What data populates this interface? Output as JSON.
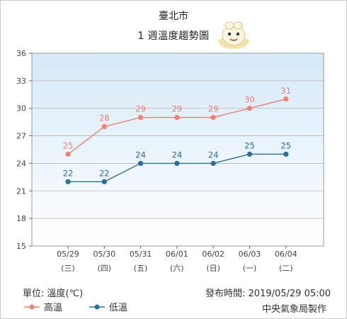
{
  "header": {
    "city": "臺北市",
    "subtitle": "1 週溫度趨勢圖"
  },
  "footer": {
    "unit": "單位: 溫度(℃)",
    "published": "發布時間: 2019/05/29 05:00",
    "credit": "中央氣象局製作"
  },
  "colors": {
    "high": "#f08070",
    "low": "#2a6e9a",
    "plot_bg_top": "#d6e9f8",
    "plot_bg_bottom": "#ffffff",
    "grid": "#b8b8b8"
  },
  "icons": {
    "mascot": "weather-mascot-icon"
  },
  "chart_data": {
    "type": "line",
    "title": "1 週溫度趨勢圖",
    "categories": [
      "05/29",
      "05/30",
      "05/31",
      "06/01",
      "06/02",
      "06/03",
      "06/04"
    ],
    "weekdays": [
      "(三)",
      "(四)",
      "(五)",
      "(六)",
      "(日)",
      "(一)",
      "(二)"
    ],
    "ylim": [
      15,
      36
    ],
    "yticks": [
      15,
      18,
      21,
      24,
      27,
      30,
      33,
      36
    ],
    "grid": true,
    "series": [
      {
        "name": "高溫",
        "values": [
          25,
          28,
          29,
          29,
          29,
          30,
          31
        ]
      },
      {
        "name": "低溫",
        "values": [
          22,
          22,
          24,
          24,
          24,
          25,
          25
        ]
      }
    ],
    "legend": "bottom-left"
  }
}
